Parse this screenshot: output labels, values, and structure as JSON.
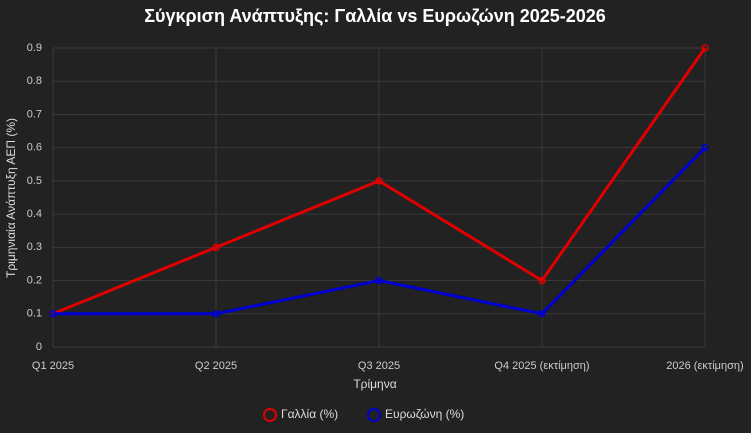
{
  "chart_data": {
    "type": "line",
    "title": "Σύγκριση Ανάπτυξης: Γαλλία vs Ευρωζώνη 2025-2026",
    "x_label": "Τρίμηνα",
    "y_label": "Τριμηνιαία Ανάπτυξη ΑΕΠ (%)",
    "categories": [
      "Q1 2025",
      "Q2 2025",
      "Q3 2025",
      "Q4 2025 (εκτίμηση)",
      "2026 (εκτίμηση)"
    ],
    "series": [
      {
        "name": "Γαλλία (%)",
        "color": "#e00000",
        "values": [
          0.1,
          0.3,
          0.5,
          0.2,
          0.9
        ]
      },
      {
        "name": "Ευρωζώνη (%)",
        "color": "#0000d0",
        "values": [
          0.1,
          0.1,
          0.2,
          0.1,
          0.6
        ]
      }
    ],
    "ylim": [
      0,
      0.9
    ],
    "yticks": [
      0,
      0.1,
      0.2,
      0.3,
      0.4,
      0.5,
      0.6,
      0.7,
      0.8,
      0.9
    ],
    "grid": true,
    "legend": "bottom"
  }
}
